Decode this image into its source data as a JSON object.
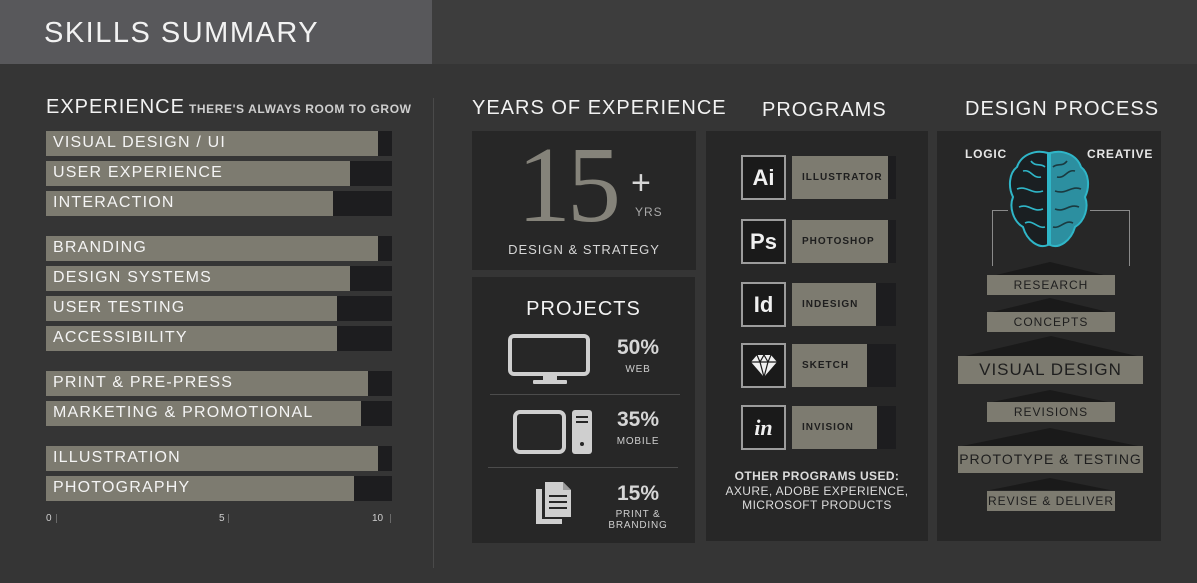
{
  "header": {
    "title": "SKILLS SUMMARY"
  },
  "experience": {
    "title": "EXPERIENCE",
    "subtitle": "THERE'S ALWAYS ROOM TO GROW",
    "axis_ticks": [
      "0",
      "5",
      "10"
    ],
    "skills": [
      {
        "label": "VISUAL DESIGN / UI",
        "value": 9.6
      },
      {
        "label": "USER EXPERIENCE",
        "value": 8.8
      },
      {
        "label": "INTERACTION",
        "value": 8.3
      },
      {
        "label": "BRANDING",
        "value": 9.6
      },
      {
        "label": "DESIGN SYSTEMS",
        "value": 8.8
      },
      {
        "label": "USER TESTING",
        "value": 8.4
      },
      {
        "label": "ACCESSIBILITY",
        "value": 8.4
      },
      {
        "label": "PRINT & PRE-PRESS",
        "value": 9.3
      },
      {
        "label": "MARKETING & PROMOTIONAL",
        "value": 9.1
      },
      {
        "label": "ILLUSTRATION",
        "value": 9.6
      },
      {
        "label": "PHOTOGRAPHY",
        "value": 8.9
      }
    ]
  },
  "years": {
    "title": "YEARS OF EXPERIENCE",
    "number": "15",
    "plus": "+",
    "unit": "YRS",
    "caption": "DESIGN & STRATEGY"
  },
  "projects": {
    "title": "PROJECTS",
    "items": [
      {
        "percent": "50%",
        "label": "WEB",
        "icon": "monitor-icon"
      },
      {
        "percent": "35%",
        "label": "MOBILE",
        "icon": "tablet-device-icon"
      },
      {
        "percent": "15%",
        "label_line1": "PRINT &",
        "label_line2": "BRANDING",
        "icon": "documents-icon"
      }
    ]
  },
  "programs": {
    "title": "PROGRAMS",
    "items": [
      {
        "icon_text": "Ai",
        "label": "ILLUSTRATOR",
        "level": 0.92
      },
      {
        "icon_text": "Ps",
        "label": "PHOTOSHOP",
        "level": 0.92
      },
      {
        "icon_text": "Id",
        "label": "INDESIGN",
        "level": 0.81
      },
      {
        "icon_text": "",
        "label": "SKETCH",
        "level": 0.72,
        "icon": "sketch-diamond-icon"
      },
      {
        "icon_text": "in",
        "label": "INVISION",
        "level": 0.82
      }
    ],
    "other_title": "OTHER PROGRAMS USED:",
    "other_line1": "AXURE, ADOBE EXPERIENCE,",
    "other_line2": "MICROSOFT PRODUCTS"
  },
  "process": {
    "title": "DESIGN PROCESS",
    "logic": "LOGIC",
    "creative": "CREATIVE",
    "steps": [
      "RESEARCH",
      "CONCEPTS",
      "VISUAL DESIGN",
      "REVISIONS",
      "PROTOTYPE & TESTING",
      "REVISE & DELIVER"
    ]
  },
  "colors": {
    "bar_fill": "#7d7b70",
    "bar_track": "#1d1d1f",
    "brain_accent": "#2fb6c8"
  }
}
